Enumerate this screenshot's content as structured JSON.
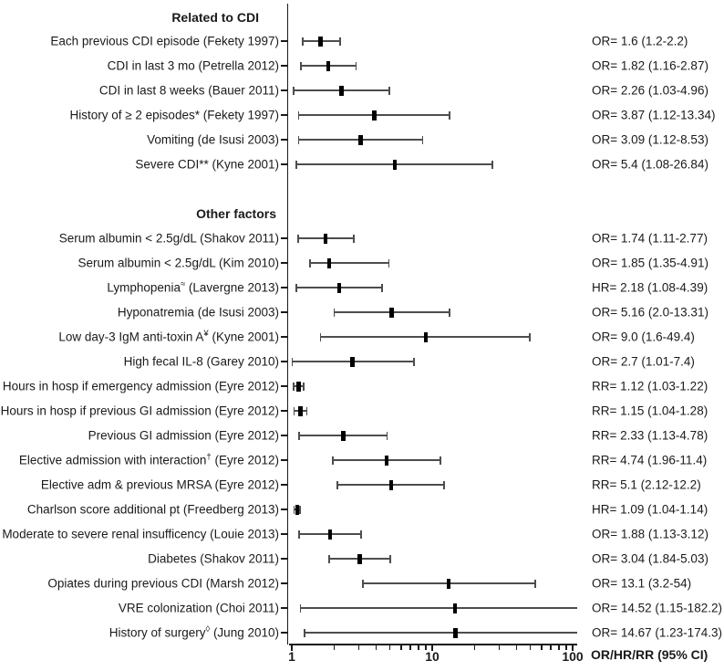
{
  "colors": {
    "ci_line": "#4d4d4d",
    "marker": "#000000",
    "axis": "#1a1a1a",
    "text": "#1a1a1a"
  },
  "chart_data": {
    "type": "scatter",
    "subtype": "forest-plot",
    "xscale": "log",
    "xlim": [
      1,
      100
    ],
    "x_ticks": [
      1,
      2,
      3,
      4,
      5,
      6,
      7,
      8,
      9,
      10,
      20,
      30,
      40,
      50,
      60,
      70,
      80,
      90,
      100
    ],
    "x_tick_labels": [
      {
        "value": 1,
        "label": "1"
      },
      {
        "value": 10,
        "label": "10"
      },
      {
        "value": 100,
        "label": "100"
      }
    ],
    "xlabel": "OR/HR/RR (95% CI)",
    "grid": false,
    "legend": "none",
    "sections": [
      {
        "header": "Related to CDI",
        "rows": [
          {
            "pre": "Each previous CDI episode (Fekety 1997)",
            "sup": "",
            "post": "",
            "est": 1.6,
            "lo": 1.2,
            "hi": 2.2,
            "value_text": "OR= 1.6 (1.2-2.2)"
          },
          {
            "pre": "CDI in last 3 mo (Petrella 2012)",
            "sup": "",
            "post": "",
            "est": 1.82,
            "lo": 1.16,
            "hi": 2.87,
            "value_text": "OR= 1.82 (1.16-2.87)"
          },
          {
            "pre": "CDI in last 8 weeks (Bauer 2011)",
            "sup": "",
            "post": "",
            "est": 2.26,
            "lo": 1.03,
            "hi": 4.96,
            "value_text": "OR= 2.26 (1.03-4.96)"
          },
          {
            "pre": "History of ≥ 2 episodes* (Fekety 1997)",
            "sup": "",
            "post": "",
            "est": 3.87,
            "lo": 1.12,
            "hi": 13.34,
            "value_text": "OR= 3.87 (1.12-13.34)"
          },
          {
            "pre": "Vomiting (de Isusi 2003)",
            "sup": "",
            "post": "",
            "est": 3.09,
            "lo": 1.12,
            "hi": 8.53,
            "value_text": "OR= 3.09 (1.12-8.53)"
          },
          {
            "pre": "Severe CDI** (Kyne 2001)",
            "sup": "",
            "post": "",
            "est": 5.4,
            "lo": 1.08,
            "hi": 26.84,
            "value_text": "OR= 5.4 (1.08-26.84)"
          }
        ]
      },
      {
        "header": "Other factors",
        "rows": [
          {
            "pre": "Serum albumin < 2.5g/dL (Shakov 2011)",
            "sup": "",
            "post": "",
            "est": 1.74,
            "lo": 1.11,
            "hi": 2.77,
            "value_text": "OR= 1.74 (1.11-2.77)"
          },
          {
            "pre": "Serum albumin < 2.5g/dL (Kim 2010)",
            "sup": "",
            "post": "",
            "est": 1.85,
            "lo": 1.35,
            "hi": 4.91,
            "value_text": "OR= 1.85 (1.35-4.91)"
          },
          {
            "pre": "Lymphopenia",
            "sup": "≈",
            "post": " (Lavergne 2013)",
            "est": 2.18,
            "lo": 1.08,
            "hi": 4.39,
            "value_text": "HR= 2.18 (1.08-4.39)"
          },
          {
            "pre": "Hyponatremia (de Isusi 2003)",
            "sup": "",
            "post": "",
            "est": 5.16,
            "lo": 2.0,
            "hi": 13.31,
            "value_text": "OR= 5.16 (2.0-13.31)"
          },
          {
            "pre": "Low day-3 IgM anti-toxin A",
            "sup": "¥",
            "post": " (Kyne 2001)",
            "est": 9.0,
            "lo": 1.6,
            "hi": 49.4,
            "value_text": "OR= 9.0 (1.6-49.4)"
          },
          {
            "pre": "High fecal IL-8 (Garey 2010)",
            "sup": "",
            "post": "",
            "est": 2.7,
            "lo": 1.01,
            "hi": 7.4,
            "value_text": "OR= 2.7 (1.01-7.4)"
          },
          {
            "pre": "Hours in hosp if emergency admission (Eyre 2012)",
            "sup": "",
            "post": "",
            "est": 1.12,
            "lo": 1.03,
            "hi": 1.22,
            "value_text": "RR= 1.12 (1.03-1.22)"
          },
          {
            "pre": "Hours in hosp if previous GI admission (Eyre 2012)",
            "sup": "",
            "post": "",
            "est": 1.15,
            "lo": 1.04,
            "hi": 1.28,
            "value_text": "RR= 1.15 (1.04-1.28)"
          },
          {
            "pre": "Previous GI admission (Eyre 2012)",
            "sup": "",
            "post": "",
            "est": 2.33,
            "lo": 1.13,
            "hi": 4.78,
            "value_text": "RR= 2.33 (1.13-4.78)"
          },
          {
            "pre": "Elective admission with interaction",
            "sup": "†",
            "post": " (Eyre 2012)",
            "est": 4.74,
            "lo": 1.96,
            "hi": 11.4,
            "value_text": "RR= 4.74 (1.96-11.4)"
          },
          {
            "pre": "Elective adm & previous MRSA (Eyre 2012)",
            "sup": "",
            "post": "",
            "est": 5.1,
            "lo": 2.12,
            "hi": 12.2,
            "value_text": "RR= 5.1 (2.12-12.2)"
          },
          {
            "pre": "Charlson score additional pt (Freedberg 2013)",
            "sup": "",
            "post": "",
            "est": 1.09,
            "lo": 1.04,
            "hi": 1.14,
            "value_text": "HR= 1.09 (1.04-1.14)"
          },
          {
            "pre": "Moderate to severe renal insufficency (Louie 2013)",
            "sup": "",
            "post": "",
            "est": 1.88,
            "lo": 1.13,
            "hi": 3.12,
            "value_text": "OR= 1.88 (1.13-3.12)"
          },
          {
            "pre": "Diabetes (Shakov 2011)",
            "sup": "",
            "post": "",
            "est": 3.04,
            "lo": 1.84,
            "hi": 5.03,
            "value_text": "OR= 3.04 (1.84-5.03)"
          },
          {
            "pre": "Opiates during previous CDI (Marsh 2012)",
            "sup": "",
            "post": "",
            "est": 13.1,
            "lo": 3.2,
            "hi": 54,
            "value_text": "OR= 13.1 (3.2-54)"
          },
          {
            "pre": "VRE colonization (Choi 2011)",
            "sup": "",
            "post": "",
            "est": 14.52,
            "lo": 1.15,
            "hi": 182.2,
            "value_text": "OR= 14.52 (1.15-182.2)"
          },
          {
            "pre": "History of surgery",
            "sup": "◊",
            "post": " (Jung 2010)",
            "est": 14.67,
            "lo": 1.23,
            "hi": 174.3,
            "value_text": "OR= 14.67 (1.23-174.3)"
          }
        ]
      }
    ]
  }
}
